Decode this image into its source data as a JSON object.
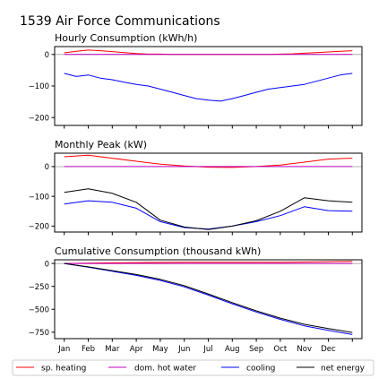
{
  "title": "1539 Air Force Communications",
  "legend": [
    "sp. heating",
    "dom. hot water",
    "cooling",
    "net energy"
  ],
  "colors": {
    "sp_heating": "#ff0000",
    "dom_hot_water": "#bf00bf",
    "cooling": "#0000ff",
    "net_energy": "#000000",
    "zero_line": "#b0b0b0"
  },
  "month_labels": [
    "Jan",
    "Feb",
    "Mar",
    "Apr",
    "May",
    "Jun",
    "Jul",
    "Aug",
    "Sep",
    "Oct",
    "Nov",
    "Dec"
  ],
  "chart_data": [
    {
      "type": "line",
      "title": "Hourly Consumption (kWh/h)",
      "xlabel": "",
      "ylabel": "",
      "ylim": [
        -225,
        25
      ],
      "yticks": [
        0,
        -100,
        -200
      ],
      "series": [
        {
          "name": "sp. heating",
          "key": "sp_heating",
          "x": [
            1,
            1.5,
            2,
            2.5,
            3,
            3.5,
            4,
            4.5,
            5,
            5.5,
            6,
            6.5,
            7,
            7.5,
            8,
            8.5,
            9,
            9.5,
            10,
            10.5,
            11,
            11.5,
            12,
            12.5,
            13
          ],
          "y": [
            5,
            10,
            14,
            12,
            9,
            6,
            3,
            1,
            1,
            0,
            0,
            0,
            0,
            0,
            0,
            0,
            0,
            0,
            1,
            2,
            4,
            6,
            8,
            10,
            12
          ]
        },
        {
          "name": "dom. hot water",
          "key": "dom_hot_water",
          "x": [
            1,
            13
          ],
          "y": [
            0,
            0
          ]
        },
        {
          "name": "cooling",
          "key": "cooling",
          "x": [
            1,
            1.5,
            2,
            2.5,
            3,
            3.5,
            4,
            4.5,
            5,
            5.5,
            6,
            6.5,
            7,
            7.5,
            8,
            8.5,
            9,
            9.5,
            10,
            10.5,
            11,
            11.5,
            12,
            12.5,
            13
          ],
          "y": [
            -60,
            -70,
            -65,
            -75,
            -80,
            -88,
            -95,
            -100,
            -110,
            -120,
            -130,
            -140,
            -145,
            -148,
            -140,
            -130,
            -120,
            -110,
            -105,
            -100,
            -95,
            -85,
            -75,
            -65,
            -60
          ]
        }
      ]
    },
    {
      "type": "line",
      "title": "Monthly Peak (kW)",
      "xlabel": "",
      "ylabel": "",
      "ylim": [
        -220,
        45
      ],
      "yticks": [
        0,
        -100,
        -200
      ],
      "series": [
        {
          "name": "sp. heating",
          "key": "sp_heating",
          "x": [
            1,
            2,
            3,
            4,
            5,
            6,
            7,
            8,
            9,
            10,
            11,
            12,
            13
          ],
          "y": [
            33,
            38,
            28,
            18,
            8,
            2,
            -2,
            -3,
            0,
            5,
            15,
            25,
            28
          ]
        },
        {
          "name": "dom. hot water",
          "key": "dom_hot_water",
          "x": [
            1,
            13
          ],
          "y": [
            0,
            0
          ]
        },
        {
          "name": "cooling",
          "key": "cooling",
          "x": [
            1,
            2,
            3,
            4,
            5,
            6,
            7,
            8,
            9,
            10,
            11,
            12,
            13
          ],
          "y": [
            -126,
            -115,
            -120,
            -140,
            -185,
            -205,
            -210,
            -200,
            -185,
            -165,
            -135,
            -148,
            -150
          ]
        },
        {
          "name": "net energy",
          "key": "net_energy",
          "x": [
            1,
            2,
            3,
            4,
            5,
            6,
            7,
            8,
            9,
            10,
            11,
            12,
            13
          ],
          "y": [
            -87,
            -75,
            -90,
            -120,
            -180,
            -203,
            -212,
            -200,
            -182,
            -150,
            -105,
            -115,
            -120
          ]
        }
      ]
    },
    {
      "type": "line",
      "title": "Cumulative Consumption (thousand kWh)",
      "xlabel": "",
      "ylabel": "",
      "ylim": [
        -820,
        40
      ],
      "yticks": [
        0,
        -250,
        -500,
        -750
      ],
      "series": [
        {
          "name": "sp. heating",
          "key": "sp_heating",
          "x": [
            1,
            2,
            3,
            4,
            5,
            6,
            7,
            8,
            9,
            10,
            11,
            12,
            13
          ],
          "y": [
            0,
            3,
            7,
            10,
            12,
            13,
            13,
            13,
            13,
            14,
            16,
            19,
            22
          ]
        },
        {
          "name": "dom. hot water",
          "key": "dom_hot_water",
          "x": [
            1,
            13
          ],
          "y": [
            0,
            0
          ]
        },
        {
          "name": "cooling",
          "key": "cooling",
          "x": [
            1,
            2,
            3,
            4,
            5,
            6,
            7,
            8,
            9,
            10,
            11,
            12,
            13
          ],
          "y": [
            0,
            -40,
            -85,
            -130,
            -185,
            -255,
            -345,
            -440,
            -530,
            -610,
            -680,
            -730,
            -775
          ]
        },
        {
          "name": "net energy",
          "key": "net_energy",
          "x": [
            1,
            2,
            3,
            4,
            5,
            6,
            7,
            8,
            9,
            10,
            11,
            12,
            13
          ],
          "y": [
            0,
            -37,
            -78,
            -120,
            -173,
            -242,
            -332,
            -427,
            -517,
            -596,
            -664,
            -711,
            -753
          ]
        }
      ]
    }
  ]
}
